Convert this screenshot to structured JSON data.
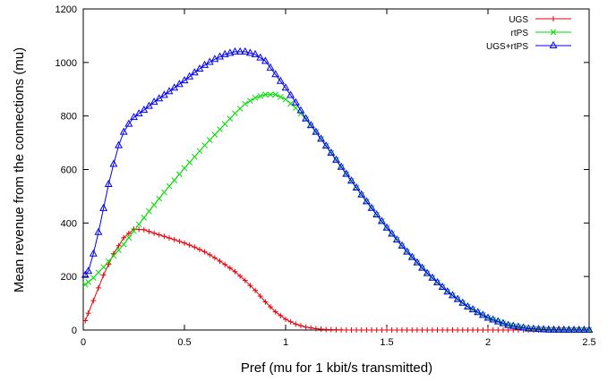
{
  "chart_data": {
    "type": "line",
    "title": "",
    "xlabel": "Pref (mu for 1 kbit/s transmitted)",
    "ylabel": "Mean revenue from the connections (mu)",
    "xlim": [
      0,
      2.5
    ],
    "ylim": [
      0,
      1200
    ],
    "xticks": [
      0,
      0.5,
      1,
      1.5,
      2,
      2.5
    ],
    "xtick_labels": [
      "0",
      "0.5",
      "1",
      "1.5",
      "2",
      "2.5"
    ],
    "yticks": [
      0,
      200,
      400,
      600,
      800,
      1000,
      1200
    ],
    "ytick_labels": [
      "0",
      "200",
      "400",
      "600",
      "800",
      "1000",
      "1200"
    ],
    "grid": false,
    "legend_position": "top-right",
    "x_step": 0.025,
    "series": [
      {
        "name": "UGS",
        "color": "#e8000b",
        "marker": "plus",
        "points": [
          [
            0.01,
            35
          ],
          [
            0.05,
            110
          ],
          [
            0.1,
            205
          ],
          [
            0.15,
            285
          ],
          [
            0.2,
            345
          ],
          [
            0.25,
            377
          ],
          [
            0.3,
            375
          ],
          [
            0.35,
            362
          ],
          [
            0.4,
            350
          ],
          [
            0.45,
            338
          ],
          [
            0.5,
            325
          ],
          [
            0.55,
            310
          ],
          [
            0.6,
            292
          ],
          [
            0.65,
            270
          ],
          [
            0.7,
            245
          ],
          [
            0.75,
            218
          ],
          [
            0.8,
            185
          ],
          [
            0.85,
            148
          ],
          [
            0.9,
            105
          ],
          [
            0.95,
            68
          ],
          [
            1.0,
            40
          ],
          [
            1.05,
            22
          ],
          [
            1.1,
            11
          ],
          [
            1.15,
            5
          ],
          [
            1.2,
            2
          ],
          [
            1.3,
            0
          ],
          [
            2.5,
            0
          ]
        ]
      },
      {
        "name": "rtPS",
        "color": "#00dd00",
        "marker": "cross",
        "points": [
          [
            0.01,
            170
          ],
          [
            0.05,
            195
          ],
          [
            0.1,
            235
          ],
          [
            0.2,
            320
          ],
          [
            0.3,
            420
          ],
          [
            0.4,
            515
          ],
          [
            0.5,
            605
          ],
          [
            0.6,
            690
          ],
          [
            0.7,
            770
          ],
          [
            0.75,
            810
          ],
          [
            0.8,
            845
          ],
          [
            0.85,
            868
          ],
          [
            0.9,
            880
          ],
          [
            0.95,
            880
          ],
          [
            1.0,
            862
          ],
          [
            1.05,
            830
          ],
          [
            1.1,
            788
          ],
          [
            1.15,
            740
          ],
          [
            1.2,
            688
          ],
          [
            1.3,
            583
          ],
          [
            1.4,
            480
          ],
          [
            1.5,
            382
          ],
          [
            1.6,
            292
          ],
          [
            1.7,
            212
          ],
          [
            1.8,
            143
          ],
          [
            1.9,
            87
          ],
          [
            2.0,
            45
          ],
          [
            2.1,
            18
          ],
          [
            2.2,
            5
          ],
          [
            2.3,
            1
          ],
          [
            2.4,
            0
          ],
          [
            2.5,
            0
          ]
        ]
      },
      {
        "name": "UGS+rtPS",
        "color": "#0000ee",
        "marker": "triangle",
        "points": [
          [
            0.01,
            205
          ],
          [
            0.025,
            220
          ],
          [
            0.05,
            285
          ],
          [
            0.075,
            365
          ],
          [
            0.1,
            455
          ],
          [
            0.125,
            545
          ],
          [
            0.15,
            620
          ],
          [
            0.175,
            690
          ],
          [
            0.2,
            740
          ],
          [
            0.225,
            770
          ],
          [
            0.25,
            795
          ],
          [
            0.3,
            822
          ],
          [
            0.35,
            852
          ],
          [
            0.4,
            878
          ],
          [
            0.45,
            905
          ],
          [
            0.5,
            932
          ],
          [
            0.55,
            962
          ],
          [
            0.6,
            990
          ],
          [
            0.65,
            1012
          ],
          [
            0.7,
            1030
          ],
          [
            0.75,
            1040
          ],
          [
            0.8,
            1040
          ],
          [
            0.85,
            1030
          ],
          [
            0.9,
            1005
          ],
          [
            0.95,
            955
          ],
          [
            1.0,
            905
          ],
          [
            1.05,
            850
          ],
          [
            1.1,
            790
          ],
          [
            1.15,
            740
          ],
          [
            1.2,
            688
          ],
          [
            1.3,
            583
          ],
          [
            1.4,
            480
          ],
          [
            1.5,
            382
          ],
          [
            1.6,
            292
          ],
          [
            1.7,
            212
          ],
          [
            1.8,
            143
          ],
          [
            1.9,
            87
          ],
          [
            2.0,
            45
          ],
          [
            2.1,
            18
          ],
          [
            2.2,
            5
          ],
          [
            2.3,
            1
          ],
          [
            2.4,
            0
          ],
          [
            2.5,
            0
          ]
        ]
      }
    ]
  }
}
